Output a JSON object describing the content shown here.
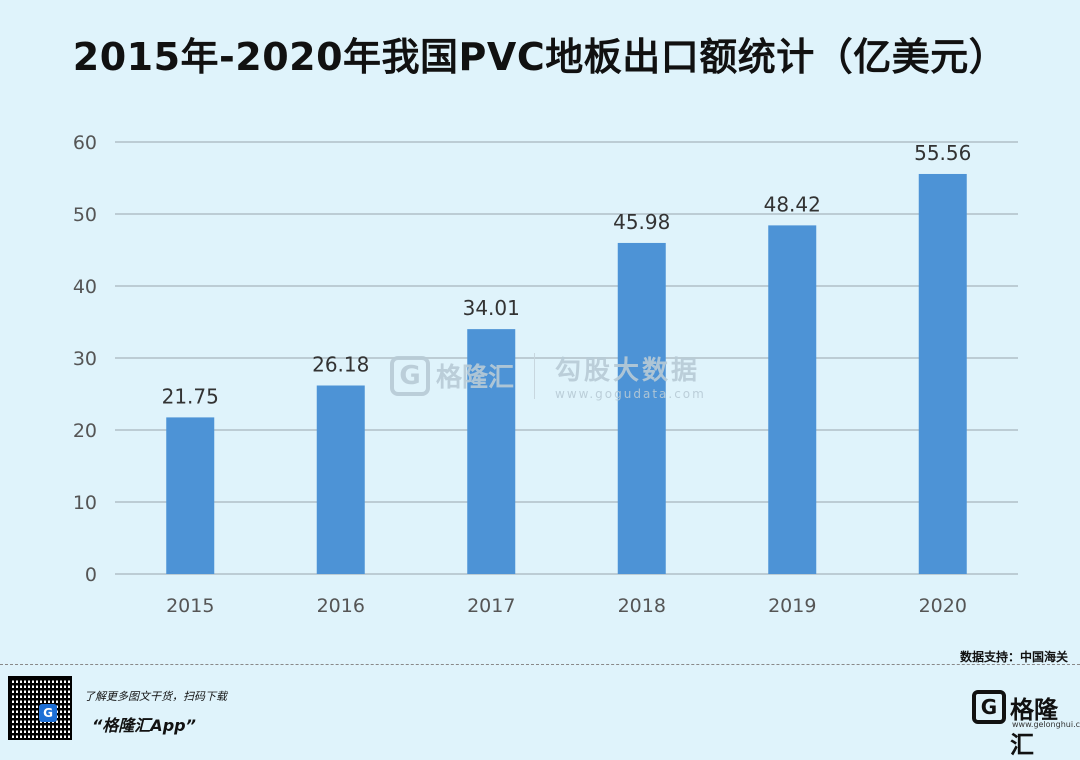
{
  "title": "2015年-2020年我国PVC地板出口额统计（亿美元）",
  "source": "数据支持：中国海关",
  "watermark": {
    "logo_letter": "G",
    "brand": "格隆汇",
    "cn": "勾股大数据",
    "url": "www.gogudata.com"
  },
  "footer": {
    "promo_line1": "了解更多图文干货，扫码下载",
    "promo_line2": "“格隆汇App”",
    "brand_logo_letter": "G",
    "brand_name": "格隆汇",
    "brand_url": "www.gelonghui.com"
  },
  "colors": {
    "background": "#dff3fb",
    "bar": "#4d93d6",
    "grid": "#bcccd4"
  },
  "chart_data": {
    "type": "bar",
    "title": "2015年-2020年我国PVC地板出口额统计（亿美元）",
    "categories": [
      "2015",
      "2016",
      "2017",
      "2018",
      "2019",
      "2020"
    ],
    "values": [
      21.75,
      26.18,
      34.01,
      45.98,
      48.42,
      55.56
    ],
    "value_labels": [
      "21.75",
      "26.18",
      "34.01",
      "45.98",
      "48.42",
      "55.56"
    ],
    "ylim": [
      0,
      60
    ],
    "yticks": [
      0,
      10,
      20,
      30,
      40,
      50,
      60
    ],
    "grid": true,
    "legend": "none"
  }
}
